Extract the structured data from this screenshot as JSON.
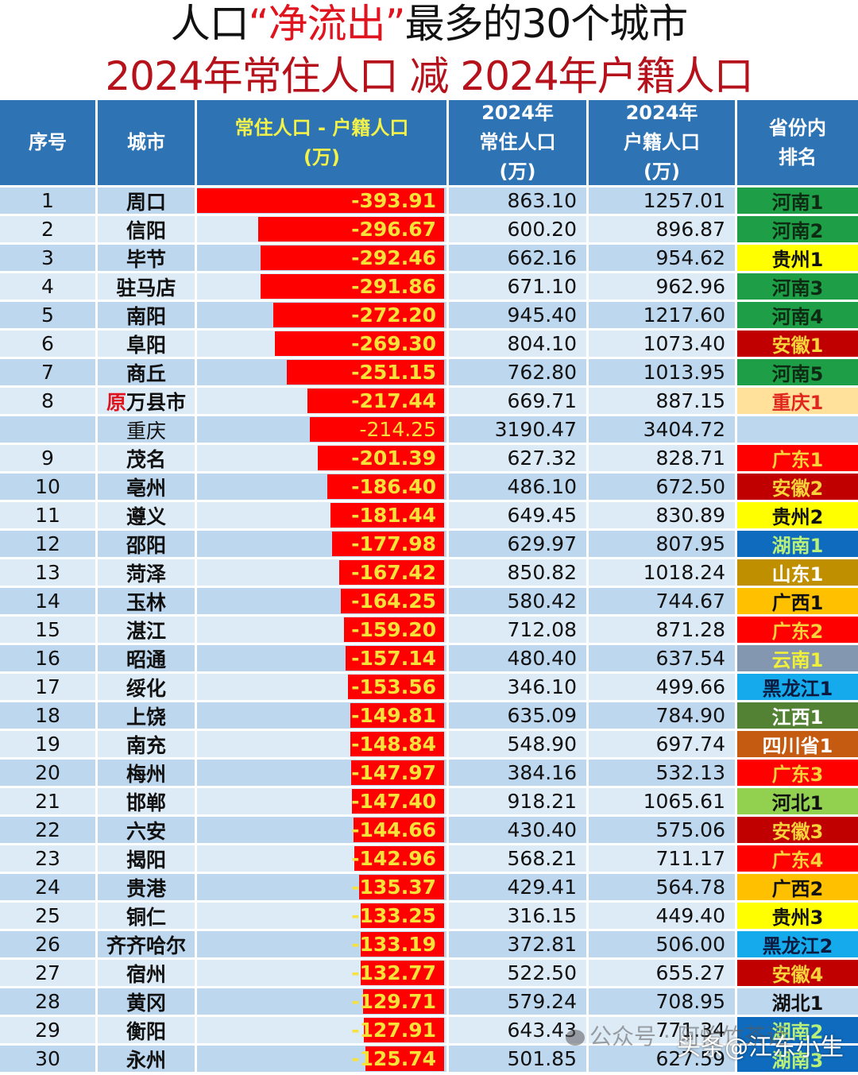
{
  "title": {
    "line1_pre": "人口",
    "line1_hl": "“净流出”",
    "line1_post": "最多的30个城市",
    "line2": "2024年常住人口 减 2024年户籍人口"
  },
  "headers": {
    "idx": "序号",
    "city": "城市",
    "diff_l1": "常住人口 - 户籍人口",
    "diff_l2": "(万)",
    "res_l1": "2024年",
    "res_l2": "常住人口",
    "res_l3": "(万)",
    "huji_l1": "2024年",
    "huji_l2": "户籍人口",
    "huji_l3": "(万)",
    "rank_l1": "省份内",
    "rank_l2": "排名"
  },
  "colors": {
    "header_bg": "#2e74b5",
    "row_odd": "#bdd7ee",
    "row_even": "#ddebf7",
    "bar": "#ff0000",
    "bar_text": "#f7e23a"
  },
  "rows": [
    {
      "idx": "1",
      "city": "周口",
      "diff": "-393.91",
      "res": "863.10",
      "huji": "1257.01",
      "rank": "河南1",
      "rbg": "#1f9e48",
      "rfg": "#0d2a12"
    },
    {
      "idx": "2",
      "city": "信阳",
      "diff": "-296.67",
      "res": "600.20",
      "huji": "896.87",
      "rank": "河南2",
      "rbg": "#1f9e48",
      "rfg": "#0d2a12"
    },
    {
      "idx": "3",
      "city": "毕节",
      "diff": "-292.46",
      "res": "662.16",
      "huji": "954.62",
      "rank": "贵州1",
      "rbg": "#ffff00",
      "rfg": "#111111"
    },
    {
      "idx": "4",
      "city": "驻马店",
      "diff": "-291.86",
      "res": "671.10",
      "huji": "962.96",
      "rank": "河南3",
      "rbg": "#1f9e48",
      "rfg": "#0d2a12"
    },
    {
      "idx": "5",
      "city": "南阳",
      "diff": "-272.20",
      "res": "945.40",
      "huji": "1217.60",
      "rank": "河南4",
      "rbg": "#1f9e48",
      "rfg": "#0d2a12"
    },
    {
      "idx": "6",
      "city": "阜阳",
      "diff": "-269.30",
      "res": "804.10",
      "huji": "1073.40",
      "rank": "安徽1",
      "rbg": "#c00000",
      "rfg": "#f7d23a"
    },
    {
      "idx": "7",
      "city": "商丘",
      "diff": "-251.15",
      "res": "762.80",
      "huji": "1013.95",
      "rank": "河南5",
      "rbg": "#1f9e48",
      "rfg": "#0d2a12"
    },
    {
      "idx": "8",
      "city_orig": "原",
      "city": "万县市",
      "diff": "-217.44",
      "res": "669.71",
      "huji": "887.15",
      "rank": "重庆1",
      "rbg": "#ffe19c",
      "rfg": "#e0261e"
    },
    {
      "idx": "",
      "city": "重庆",
      "diff": "-214.25",
      "res": "3190.47",
      "huji": "3404.72",
      "rank": "",
      "rbg": "",
      "rfg": "",
      "plain": true
    },
    {
      "idx": "9",
      "city": "茂名",
      "diff": "-201.39",
      "res": "627.32",
      "huji": "828.71",
      "rank": "广东1",
      "rbg": "#ff0000",
      "rfg": "#f7d23a"
    },
    {
      "idx": "10",
      "city": "亳州",
      "diff": "-186.40",
      "res": "486.10",
      "huji": "672.50",
      "rank": "安徽2",
      "rbg": "#c00000",
      "rfg": "#f7d23a"
    },
    {
      "idx": "11",
      "city": "遵义",
      "diff": "-181.44",
      "res": "649.45",
      "huji": "830.89",
      "rank": "贵州2",
      "rbg": "#ffff00",
      "rfg": "#111111"
    },
    {
      "idx": "12",
      "city": "邵阳",
      "diff": "-177.98",
      "res": "629.97",
      "huji": "807.95",
      "rank": "湖南1",
      "rbg": "#0e6bbd",
      "rfg": "#b8f07a"
    },
    {
      "idx": "13",
      "city": "菏泽",
      "diff": "-167.42",
      "res": "850.82",
      "huji": "1018.24",
      "rank": "山东1",
      "rbg": "#bf8f00",
      "rfg": "#ffffff"
    },
    {
      "idx": "14",
      "city": "玉林",
      "diff": "-164.25",
      "res": "580.42",
      "huji": "744.67",
      "rank": "广西1",
      "rbg": "#ffc000",
      "rfg": "#111111"
    },
    {
      "idx": "15",
      "city": "湛江",
      "diff": "-159.20",
      "res": "712.08",
      "huji": "871.28",
      "rank": "广东2",
      "rbg": "#ff0000",
      "rfg": "#f7d23a"
    },
    {
      "idx": "16",
      "city": "昭通",
      "diff": "-157.14",
      "res": "480.40",
      "huji": "637.54",
      "rank": "云南1",
      "rbg": "#8497b0",
      "rfg": "#f0f03a"
    },
    {
      "idx": "17",
      "city": "绥化",
      "diff": "-153.56",
      "res": "346.10",
      "huji": "499.66",
      "rank": "黑龙江1",
      "rbg": "#14aaeb",
      "rfg": "#0d1a40"
    },
    {
      "idx": "18",
      "city": "上饶",
      "diff": "-149.81",
      "res": "635.09",
      "huji": "784.90",
      "rank": "江西1",
      "rbg": "#548235",
      "rfg": "#ffffff"
    },
    {
      "idx": "19",
      "city": "南充",
      "diff": "-148.84",
      "res": "548.90",
      "huji": "697.74",
      "rank": "四川省1",
      "rbg": "#c55a11",
      "rfg": "#ffffff"
    },
    {
      "idx": "20",
      "city": "梅州",
      "diff": "-147.97",
      "res": "384.16",
      "huji": "532.13",
      "rank": "广东3",
      "rbg": "#ff0000",
      "rfg": "#f7d23a"
    },
    {
      "idx": "21",
      "city": "邯郸",
      "diff": "-147.40",
      "res": "918.21",
      "huji": "1065.61",
      "rank": "河北1",
      "rbg": "#92d050",
      "rfg": "#111111"
    },
    {
      "idx": "22",
      "city": "六安",
      "diff": "-144.66",
      "res": "430.40",
      "huji": "575.06",
      "rank": "安徽3",
      "rbg": "#c00000",
      "rfg": "#f7d23a"
    },
    {
      "idx": "23",
      "city": "揭阳",
      "diff": "-142.96",
      "res": "568.21",
      "huji": "711.17",
      "rank": "广东4",
      "rbg": "#ff0000",
      "rfg": "#f7d23a"
    },
    {
      "idx": "24",
      "city": "贵港",
      "diff": "-135.37",
      "res": "429.41",
      "huji": "564.78",
      "rank": "广西2",
      "rbg": "#ffc000",
      "rfg": "#111111"
    },
    {
      "idx": "25",
      "city": "铜仁",
      "diff": "-133.25",
      "res": "316.15",
      "huji": "449.40",
      "rank": "贵州3",
      "rbg": "#ffff00",
      "rfg": "#111111"
    },
    {
      "idx": "26",
      "city": "齐齐哈尔",
      "diff": "-133.19",
      "res": "372.81",
      "huji": "506.00",
      "rank": "黑龙江2",
      "rbg": "#14aaeb",
      "rfg": "#0d1a40"
    },
    {
      "idx": "27",
      "city": "宿州",
      "diff": "-132.77",
      "res": "522.50",
      "huji": "655.27",
      "rank": "安徽4",
      "rbg": "#c00000",
      "rfg": "#f7d23a"
    },
    {
      "idx": "28",
      "city": "黄冈",
      "diff": "-129.71",
      "res": "579.24",
      "huji": "708.95",
      "rank": "湖北1",
      "rbg": "#bdd7ee",
      "rfg": "#111111"
    },
    {
      "idx": "29",
      "city": "衡阳",
      "diff": "-127.91",
      "res": "643.43",
      "huji": "771.34",
      "rank": "湖南2",
      "rbg": "#0e6bbd",
      "rfg": "#b8f07a"
    },
    {
      "idx": "30",
      "city": "永州",
      "diff": "-125.74",
      "res": "501.85",
      "huji": "627.59",
      "rank": "湖南3",
      "rbg": "#0e6bbd",
      "rfg": "#b8f07a"
    }
  ],
  "watermark": {
    "text1": "公众号 · 阿怡竹茶话",
    "text2": "头条@江东小生"
  },
  "chart_data": {
    "type": "table",
    "title": "人口“净流出”最多的30个城市",
    "subtitle": "2024年常住人口 减 2024年户籍人口",
    "columns": [
      "序号",
      "城市",
      "常住人口 - 户籍人口(万)",
      "2024年常住人口(万)",
      "2024年户籍人口(万)",
      "省份内排名"
    ],
    "bar_column": "常住人口 - 户籍人口(万)",
    "categories": [
      "周口",
      "信阳",
      "毕节",
      "驻马店",
      "南阳",
      "阜阳",
      "商丘",
      "原万县市",
      "重庆",
      "茂名",
      "亳州",
      "遵义",
      "邵阳",
      "菏泽",
      "玉林",
      "湛江",
      "昭通",
      "绥化",
      "上饶",
      "南充",
      "梅州",
      "邯郸",
      "六安",
      "揭阳",
      "贵港",
      "铜仁",
      "齐齐哈尔",
      "宿州",
      "黄冈",
      "衡阳",
      "永州"
    ],
    "series": [
      {
        "name": "常住人口 - 户籍人口(万)",
        "values": [
          -393.91,
          -296.67,
          -292.46,
          -291.86,
          -272.2,
          -269.3,
          -251.15,
          -217.44,
          -214.25,
          -201.39,
          -186.4,
          -181.44,
          -177.98,
          -167.42,
          -164.25,
          -159.2,
          -157.14,
          -153.56,
          -149.81,
          -148.84,
          -147.97,
          -147.4,
          -144.66,
          -142.96,
          -135.37,
          -133.25,
          -133.19,
          -132.77,
          -129.71,
          -127.91,
          -125.74
        ]
      },
      {
        "name": "2024年常住人口(万)",
        "values": [
          863.1,
          600.2,
          662.16,
          671.1,
          945.4,
          804.1,
          762.8,
          669.71,
          3190.47,
          627.32,
          486.1,
          649.45,
          629.97,
          850.82,
          580.42,
          712.08,
          480.4,
          346.1,
          635.09,
          548.9,
          384.16,
          918.21,
          430.4,
          568.21,
          429.41,
          316.15,
          372.81,
          522.5,
          579.24,
          643.43,
          501.85
        ]
      },
      {
        "name": "2024年户籍人口(万)",
        "values": [
          1257.01,
          896.87,
          954.62,
          962.96,
          1217.6,
          1073.4,
          1013.95,
          887.15,
          3404.72,
          828.71,
          672.5,
          830.89,
          807.95,
          1018.24,
          744.67,
          871.28,
          637.54,
          499.66,
          784.9,
          697.74,
          532.13,
          1065.61,
          575.06,
          711.17,
          564.78,
          449.4,
          506.0,
          655.27,
          708.95,
          771.34,
          627.59
        ]
      }
    ],
    "ranks": [
      "河南1",
      "河南2",
      "贵州1",
      "河南3",
      "河南4",
      "安徽1",
      "河南5",
      "重庆1",
      "",
      "广东1",
      "安徽2",
      "贵州2",
      "湖南1",
      "山东1",
      "广西1",
      "广东2",
      "云南1",
      "黑龙江1",
      "江西1",
      "四川省1",
      "广东3",
      "河北1",
      "安徽3",
      "广东4",
      "广西2",
      "贵州3",
      "黑龙江2",
      "安徽4",
      "湖北1",
      "湖南2",
      "湖南3"
    ]
  }
}
